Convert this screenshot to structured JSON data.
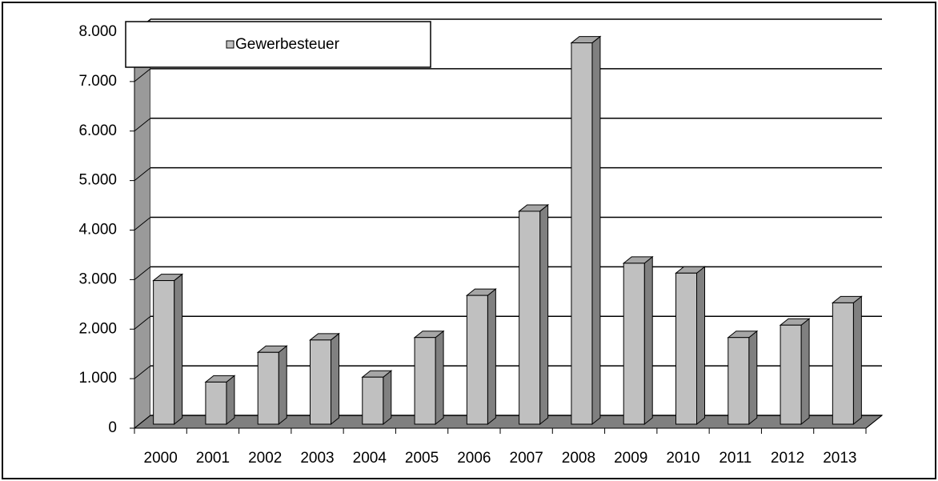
{
  "chart_data": {
    "type": "bar3d",
    "categories": [
      "2000",
      "2001",
      "2002",
      "2003",
      "2004",
      "2005",
      "2006",
      "2007",
      "2008",
      "2009",
      "2010",
      "2011",
      "2012",
      "2013"
    ],
    "series": [
      {
        "name": "Gewerbesteuer",
        "color": "#c0c0c0",
        "values": [
          2900,
          850,
          1450,
          1700,
          950,
          1750,
          2600,
          4300,
          7700,
          3250,
          3050,
          1750,
          2000,
          2450
        ]
      }
    ],
    "ylim": [
      0,
      8000
    ],
    "yticks": [
      0,
      {
        "value": 1000,
        "label": "1.000"
      },
      {
        "value": 2000,
        "label": "2.000"
      },
      {
        "value": 3000,
        "label": "3.000"
      },
      {
        "value": 4000,
        "label": "4.000"
      },
      {
        "value": 5000,
        "label": "5.000"
      },
      {
        "value": 6000,
        "label": "6.000"
      },
      {
        "value": 7000,
        "label": "7.000"
      },
      {
        "value": 8000,
        "label": "8.000"
      }
    ],
    "grid": true,
    "legend": "top-left"
  }
}
